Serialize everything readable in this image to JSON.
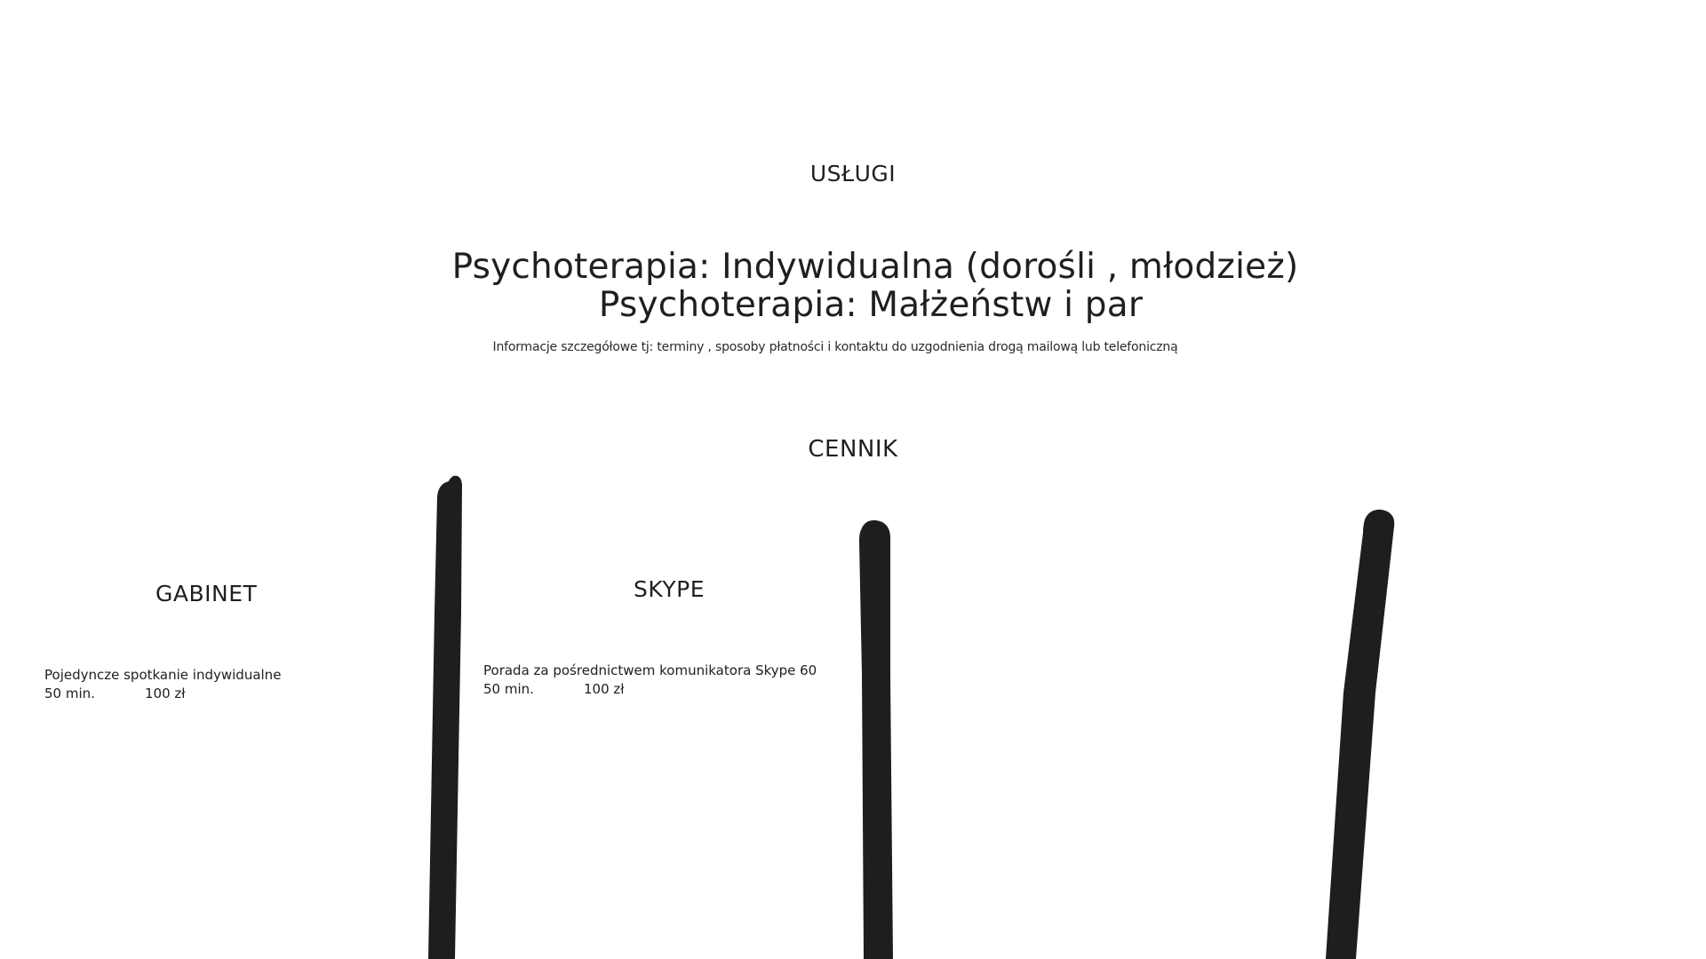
{
  "services": {
    "heading": "USŁUGI",
    "lines": [
      "Psychoterapia:  Indywidualna (dorośli  , młodzież)",
      "Psychoterapia:  Małżeństw i par"
    ],
    "info": "Informacje szczegółowe tj: terminy , sposoby płatności  i kontaktu do uzgodnienia drogą mailową lub telefoniczną"
  },
  "pricing": {
    "heading": "CENNIK",
    "gabinet": {
      "heading": "GABINET",
      "description": "Pojedyncze spotkanie indywidualne",
      "duration": "50 min.",
      "price": "100 zł"
    },
    "skype": {
      "heading": "SKYPE",
      "description": "Porada za pośrednictwem komunikatora Skype 60",
      "duration": "50 min.",
      "price": "100 zł"
    }
  },
  "colors": {
    "text": "#1f1f1f",
    "divider": "#1e1e1e",
    "background": "#ffffff"
  }
}
